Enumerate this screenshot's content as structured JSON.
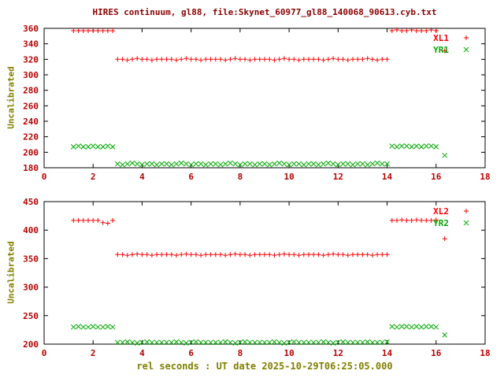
{
  "title": "HIRES continuum, gl88, file:Skynet_60977_gl88_140068_90613.cyb.txt",
  "xlabel": "rel seconds : UT date 2025-10-29T06:25:05.000",
  "colors": {
    "red": "#ff0000",
    "green": "#00aa00",
    "title": "#8b0000",
    "tick": "#bb0000",
    "axis_label": "#808000",
    "border": "#000000"
  },
  "chart_data": [
    {
      "type": "scatter",
      "ylabel": "Uncalibrated",
      "xlim": [
        0,
        18
      ],
      "ylim": [
        180,
        360
      ],
      "xticks": [
        0,
        2,
        4,
        6,
        8,
        10,
        12,
        14,
        16,
        18
      ],
      "yticks": [
        180,
        200,
        220,
        240,
        260,
        280,
        300,
        320,
        340,
        360
      ],
      "legend_position": "top-right",
      "grid": false,
      "x": [
        1.2,
        1.4,
        1.6,
        1.8,
        2.0,
        2.2,
        2.4,
        2.6,
        2.8,
        3.0,
        3.2,
        3.4,
        3.6,
        3.8,
        4.0,
        4.2,
        4.4,
        4.6,
        4.8,
        5.0,
        5.2,
        5.4,
        5.6,
        5.8,
        6.0,
        6.2,
        6.4,
        6.6,
        6.8,
        7.0,
        7.2,
        7.4,
        7.6,
        7.8,
        8.0,
        8.2,
        8.4,
        8.6,
        8.8,
        9.0,
        9.2,
        9.4,
        9.6,
        9.8,
        10.0,
        10.2,
        10.4,
        10.6,
        10.8,
        11.0,
        11.2,
        11.4,
        11.6,
        11.8,
        12.0,
        12.2,
        12.4,
        12.6,
        12.8,
        13.0,
        13.2,
        13.4,
        13.6,
        13.8,
        14.0,
        14.2,
        14.4,
        14.6,
        14.8,
        15.0,
        15.2,
        15.4,
        15.6,
        15.8,
        16.0,
        16.35
      ],
      "series": [
        {
          "name": "XL1",
          "marker": "plus",
          "color": "red",
          "values": [
            357,
            357,
            357,
            357,
            357,
            357,
            357,
            357,
            357,
            320,
            320,
            319,
            320,
            321,
            320,
            320,
            319,
            320,
            320,
            320,
            320,
            319,
            320,
            321,
            320,
            320,
            319,
            320,
            320,
            320,
            320,
            319,
            320,
            321,
            320,
            320,
            319,
            320,
            320,
            320,
            320,
            319,
            320,
            321,
            320,
            320,
            319,
            320,
            320,
            320,
            320,
            319,
            320,
            321,
            320,
            320,
            319,
            320,
            320,
            320,
            321,
            320,
            319,
            320,
            320,
            357,
            358,
            357,
            357,
            358,
            357,
            357,
            357,
            358,
            357,
            331
          ]
        },
        {
          "name": "YR1",
          "marker": "cross",
          "color": "green",
          "values": [
            207,
            208,
            207,
            207,
            208,
            207,
            207,
            208,
            207,
            185,
            184,
            185,
            186,
            185,
            184,
            185,
            185,
            184,
            185,
            185,
            184,
            185,
            186,
            185,
            184,
            185,
            185,
            184,
            185,
            185,
            184,
            185,
            186,
            185,
            184,
            185,
            185,
            184,
            185,
            185,
            184,
            185,
            186,
            185,
            184,
            185,
            185,
            184,
            185,
            185,
            184,
            185,
            186,
            185,
            184,
            185,
            185,
            184,
            185,
            185,
            184,
            185,
            186,
            185,
            185,
            208,
            207,
            208,
            208,
            207,
            208,
            207,
            208,
            208,
            207,
            196
          ]
        }
      ]
    },
    {
      "type": "scatter",
      "ylabel": "Uncalibrated",
      "xlim": [
        0,
        18
      ],
      "ylim": [
        200,
        450
      ],
      "xticks": [
        0,
        2,
        4,
        6,
        8,
        10,
        12,
        14,
        16,
        18
      ],
      "yticks": [
        200,
        250,
        300,
        350,
        400,
        450
      ],
      "legend_position": "top-right",
      "grid": false,
      "x": [
        1.2,
        1.4,
        1.6,
        1.8,
        2.0,
        2.2,
        2.4,
        2.6,
        2.8,
        3.0,
        3.2,
        3.4,
        3.6,
        3.8,
        4.0,
        4.2,
        4.4,
        4.6,
        4.8,
        5.0,
        5.2,
        5.4,
        5.6,
        5.8,
        6.0,
        6.2,
        6.4,
        6.6,
        6.8,
        7.0,
        7.2,
        7.4,
        7.6,
        7.8,
        8.0,
        8.2,
        8.4,
        8.6,
        8.8,
        9.0,
        9.2,
        9.4,
        9.6,
        9.8,
        10.0,
        10.2,
        10.4,
        10.6,
        10.8,
        11.0,
        11.2,
        11.4,
        11.6,
        11.8,
        12.0,
        12.2,
        12.4,
        12.6,
        12.8,
        13.0,
        13.2,
        13.4,
        13.6,
        13.8,
        14.0,
        14.2,
        14.4,
        14.6,
        14.8,
        15.0,
        15.2,
        15.4,
        15.6,
        15.8,
        16.0,
        16.35
      ],
      "series": [
        {
          "name": "XL2",
          "marker": "plus",
          "color": "red",
          "values": [
            417,
            417,
            417,
            417,
            417,
            417,
            413,
            412,
            417,
            357,
            357,
            356,
            357,
            358,
            357,
            357,
            356,
            357,
            357,
            357,
            357,
            356,
            357,
            358,
            357,
            357,
            356,
            357,
            357,
            357,
            357,
            356,
            357,
            358,
            357,
            357,
            356,
            357,
            357,
            357,
            357,
            356,
            357,
            358,
            357,
            357,
            356,
            357,
            357,
            357,
            357,
            356,
            357,
            358,
            357,
            357,
            356,
            357,
            357,
            357,
            357,
            356,
            357,
            357,
            357,
            417,
            417,
            418,
            417,
            417,
            418,
            417,
            417,
            417,
            418,
            385
          ]
        },
        {
          "name": "YR2",
          "marker": "cross",
          "color": "green",
          "values": [
            230,
            231,
            230,
            230,
            231,
            230,
            230,
            231,
            230,
            203,
            203,
            204,
            203,
            202,
            203,
            204,
            203,
            203,
            203,
            203,
            203,
            204,
            203,
            202,
            203,
            204,
            203,
            203,
            203,
            203,
            203,
            204,
            203,
            202,
            203,
            204,
            203,
            203,
            203,
            203,
            203,
            204,
            203,
            202,
            203,
            204,
            203,
            203,
            203,
            203,
            203,
            204,
            203,
            202,
            203,
            204,
            203,
            203,
            203,
            203,
            204,
            203,
            203,
            203,
            204,
            231,
            230,
            231,
            231,
            230,
            231,
            230,
            231,
            231,
            230,
            216
          ]
        }
      ]
    }
  ]
}
